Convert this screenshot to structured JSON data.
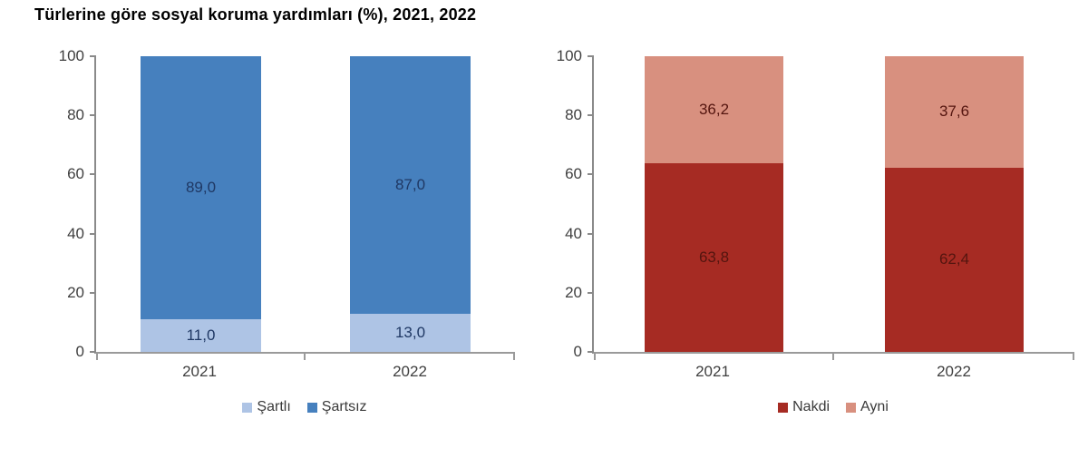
{
  "title": "Türlerine göre sosyal koruma yardımları (%), 2021, 2022",
  "chart_data": [
    {
      "type": "bar",
      "stacked": true,
      "title": "",
      "categories": [
        "2021",
        "2022"
      ],
      "series": [
        {
          "name": "Şartlı",
          "color": "#AEC4E5",
          "values": [
            11.0,
            13.0
          ],
          "labels": [
            "11,0",
            "13,0"
          ]
        },
        {
          "name": "Şartsız",
          "color": "#4680BE",
          "values": [
            89.0,
            87.0
          ],
          "labels": [
            "89,0",
            "87,0"
          ]
        }
      ],
      "y_ticks": [
        "0",
        "20",
        "40",
        "60",
        "80",
        "100"
      ],
      "ylim": [
        0,
        100
      ],
      "grid": false,
      "legend_position": "bottom",
      "label_color": "#1F3864"
    },
    {
      "type": "bar",
      "stacked": true,
      "title": "",
      "categories": [
        "2021",
        "2022"
      ],
      "series": [
        {
          "name": "Nakdi",
          "color": "#A62B23",
          "values": [
            63.8,
            62.4
          ],
          "labels": [
            "63,8",
            "62,4"
          ]
        },
        {
          "name": "Ayni",
          "color": "#D8907F",
          "values": [
            36.2,
            37.6
          ],
          "labels": [
            "36,2",
            "37,6"
          ]
        }
      ],
      "y_ticks": [
        "0",
        "20",
        "40",
        "60",
        "80",
        "100"
      ],
      "ylim": [
        0,
        100
      ],
      "grid": false,
      "legend_position": "bottom",
      "label_color": "#54150F"
    }
  ]
}
